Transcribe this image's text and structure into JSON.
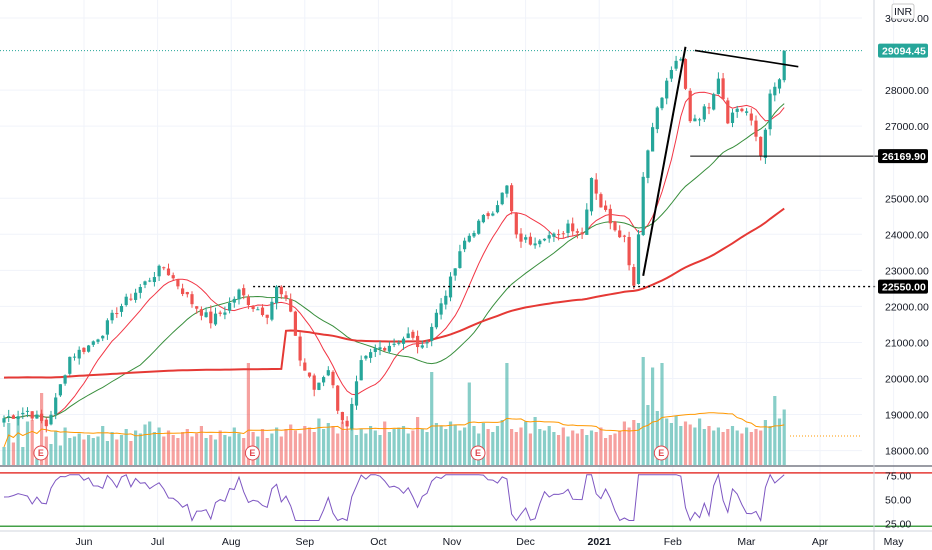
{
  "currency": "INR",
  "colors": {
    "up": "#26a69a",
    "down": "#ef5350",
    "sma_fast": "#f23645",
    "sma_mid": "#388e3c",
    "sma_slow": "#e53935",
    "rsi": "#7e57c2",
    "vol_ma": "#ff9800",
    "last_price": "#26a69a",
    "level": "#000000",
    "earnings": "#e0484f"
  },
  "chart_data": {
    "type": "line",
    "subtype": "candlestick",
    "price_axis": {
      "min": 17600,
      "max": 30500,
      "ticks": [
        "30000.00",
        "28000.00",
        "27000.00",
        "25000.00",
        "24000.00",
        "23000.00",
        "22000.00",
        "21000.00",
        "20000.00",
        "19000.00",
        "18000.00"
      ]
    },
    "time_axis": {
      "labels": [
        "Jun",
        "Jul",
        "Aug",
        "Sep",
        "Oct",
        "Nov",
        "Dec",
        "2021",
        "Feb",
        "Mar",
        "Apr",
        "May"
      ]
    },
    "price_path": [
      [
        0,
        18900
      ],
      [
        5,
        19100
      ],
      [
        9,
        18700
      ],
      [
        11,
        19400
      ],
      [
        14,
        20600
      ],
      [
        18,
        20900
      ],
      [
        21,
        21300
      ],
      [
        24,
        21900
      ],
      [
        28,
        22400
      ],
      [
        32,
        22900
      ],
      [
        34,
        23100
      ],
      [
        37,
        22600
      ],
      [
        40,
        22100
      ],
      [
        44,
        21600
      ],
      [
        47,
        21900
      ],
      [
        50,
        22400
      ],
      [
        53,
        22000
      ],
      [
        56,
        21800
      ],
      [
        58,
        22500
      ],
      [
        61,
        21900
      ],
      [
        63,
        20500
      ],
      [
        66,
        19700
      ],
      [
        69,
        20300
      ],
      [
        71,
        19200
      ],
      [
        73,
        18600
      ],
      [
        76,
        20400
      ],
      [
        79,
        20800
      ],
      [
        83,
        21000
      ],
      [
        86,
        21200
      ],
      [
        89,
        20800
      ],
      [
        92,
        21800
      ],
      [
        95,
        22700
      ],
      [
        98,
        23800
      ],
      [
        101,
        24300
      ],
      [
        104,
        24700
      ],
      [
        107,
        25300
      ],
      [
        109,
        23900
      ],
      [
        112,
        23800
      ],
      [
        115,
        24000
      ],
      [
        118,
        23900
      ],
      [
        120,
        24300
      ],
      [
        123,
        24000
      ],
      [
        125,
        25600
      ],
      [
        127,
        24800
      ],
      [
        130,
        24200
      ],
      [
        132,
        23900
      ],
      [
        134,
        22600
      ],
      [
        136,
        25600
      ],
      [
        138,
        27100
      ],
      [
        140,
        27800
      ],
      [
        142,
        28600
      ],
      [
        144,
        28800
      ],
      [
        146,
        27200
      ],
      [
        148,
        27300
      ],
      [
        150,
        27600
      ],
      [
        152,
        28400
      ],
      [
        154,
        27200
      ],
      [
        156,
        27500
      ],
      [
        158,
        27400
      ],
      [
        160,
        26700
      ],
      [
        161,
        26200
      ],
      [
        163,
        27800
      ],
      [
        165,
        28300
      ],
      [
        166,
        29094.45
      ]
    ],
    "volume": [
      1.2,
      2.8,
      1.5,
      3.1,
      1.2,
      2.9,
      3.0,
      1.1,
      4.8,
      1.9,
      1.4,
      2.3,
      1.3,
      2.5,
      1.8,
      1.9,
      2.1,
      1.7,
      2.0,
      1.8,
      1.9,
      2.6,
      1.6,
      2.2,
      1.7,
      2.0,
      2.4,
      1.6,
      2.3,
      2.1,
      2.7,
      2.9,
      2.2,
      2.5,
      1.9,
      2.3,
      2.0,
      1.8,
      2.2,
      2.4,
      1.9,
      2.1,
      2.6,
      1.8,
      2.0,
      1.7,
      2.3,
      2.0,
      1.9,
      2.5,
      2.1,
      1.8,
      6.8,
      2.2,
      1.9,
      2.4,
      1.8,
      2.1,
      2.5,
      1.9,
      2.4,
      2.7,
      2.3,
      2.1,
      2.6,
      2.5,
      2.2,
      3.1,
      2.4,
      2.8,
      2.6,
      2.1,
      2.9,
      2.3,
      2.5,
      2.0,
      2.4,
      2.1,
      2.6,
      2.3,
      2.0,
      2.9,
      2.2,
      2.4,
      2.5,
      2.6,
      2.1,
      2.3,
      3.2,
      2.4,
      2.2,
      6.2,
      2.8,
      2.6,
      2.4,
      2.9,
      2.7,
      2.3,
      2.5,
      5.5,
      2.6,
      2.1,
      2.8,
      2.4,
      2.2,
      2.6,
      3.0,
      6.8,
      2.4,
      2.2,
      2.5,
      2.9,
      2.1,
      3.2,
      2.4,
      2.3,
      2.6,
      2.2,
      2.0,
      2.5,
      1.9,
      2.3,
      2.1,
      2.4,
      2.0,
      2.3,
      2.2,
      2.5,
      1.8,
      2.0,
      2.1,
      2.3,
      2.9,
      2.5,
      3.0,
      2.8,
      7.2,
      4.0,
      6.5,
      3.6,
      6.8,
      3.1,
      2.8,
      3.3,
      2.6,
      2.9,
      2.7,
      2.5,
      3.1,
      2.4,
      2.6,
      2.3,
      2.5,
      2.2,
      2.4,
      2.6,
      2.3,
      2.1,
      2.5,
      2.2,
      2.4,
      2.3,
      3.0,
      2.6,
      4.6,
      3.1,
      3.7,
      2.9
    ],
    "rsi_range": [
      18,
      82
    ],
    "rsi_ticks": [
      "75.00",
      "50.00",
      "25.00"
    ],
    "rsi_bands": [
      78,
      22
    ],
    "markers": {
      "last_price": "29094.45",
      "resistance_break": "26169.90",
      "support": "22550.00"
    },
    "earnings_markers": [
      "E",
      "E",
      "E",
      "E"
    ],
    "legend": "none"
  }
}
